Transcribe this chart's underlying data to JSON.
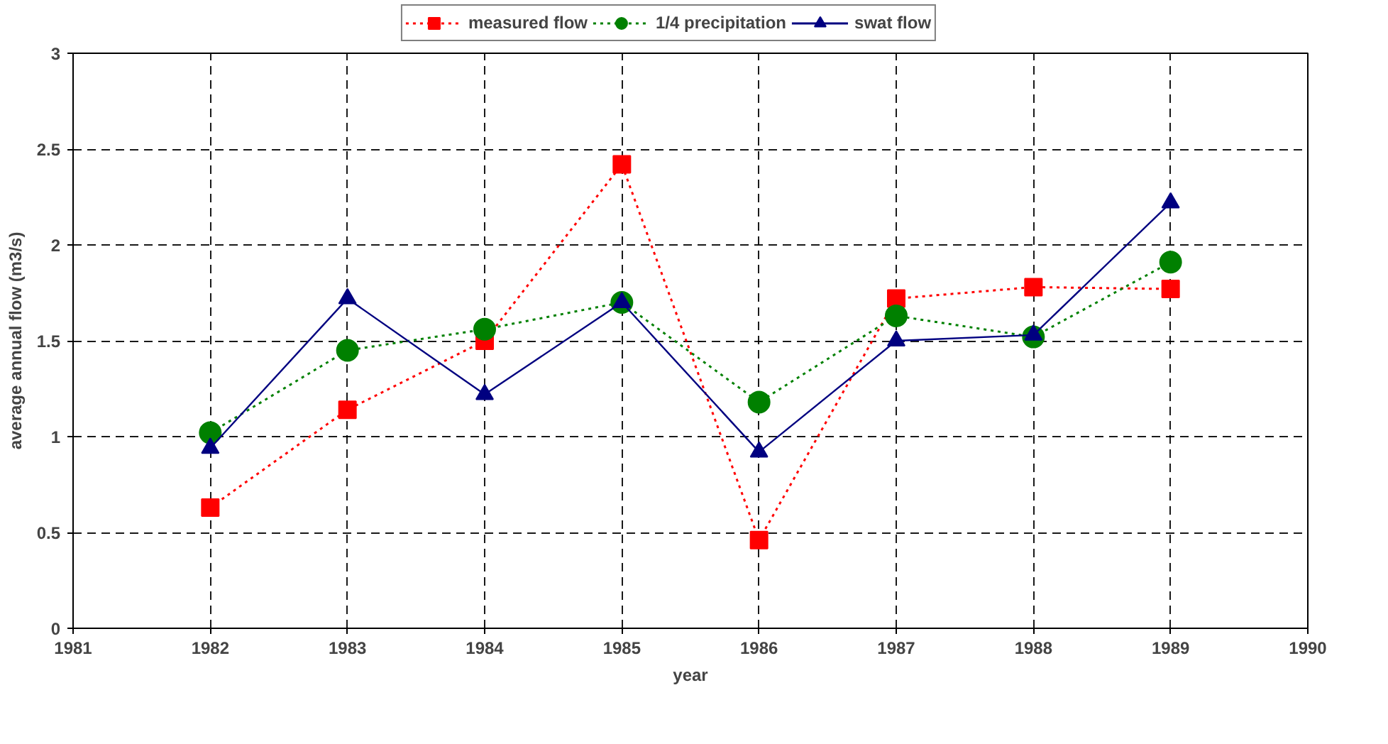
{
  "chart_data": {
    "type": "line",
    "xlabel": "year",
    "ylabel": "average annual flow (m3/s)",
    "x": [
      1982,
      1983,
      1984,
      1985,
      1986,
      1987,
      1988,
      1989
    ],
    "series": [
      {
        "name": "measured flow",
        "color": "#ff0000",
        "marker": "square",
        "line_style": "dotted",
        "values": [
          0.63,
          1.14,
          1.5,
          2.42,
          0.46,
          1.72,
          1.78,
          1.77
        ]
      },
      {
        "name": "1/4 precipitation",
        "color": "#008000",
        "marker": "circle",
        "line_style": "dotted",
        "values": [
          1.02,
          1.45,
          1.56,
          1.7,
          1.18,
          1.63,
          1.52,
          1.91
        ]
      },
      {
        "name": "swat flow",
        "color": "#000080",
        "marker": "triangle",
        "line_style": "solid",
        "values": [
          0.94,
          1.72,
          1.22,
          1.7,
          0.92,
          1.5,
          1.53,
          2.22
        ]
      }
    ],
    "xlim": [
      1981,
      1990
    ],
    "xticks": [
      1981,
      1982,
      1983,
      1984,
      1985,
      1986,
      1987,
      1988,
      1989,
      1990
    ],
    "ylim": [
      0,
      3
    ],
    "yticks": [
      0,
      0.5,
      1,
      1.5,
      2,
      2.5,
      3
    ],
    "grid": true,
    "legend": "top"
  }
}
